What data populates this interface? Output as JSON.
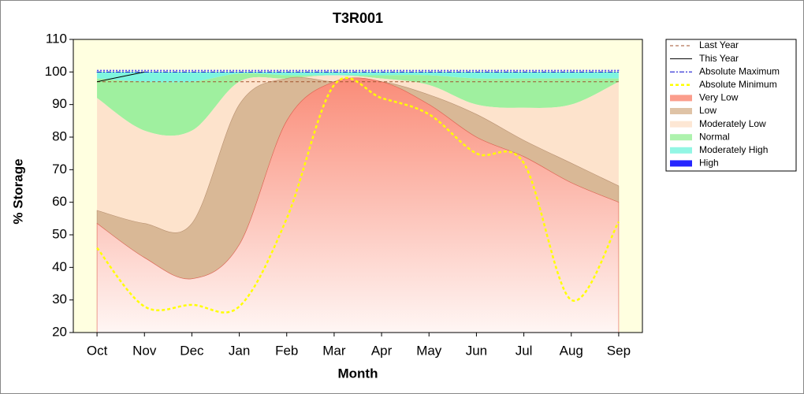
{
  "chart_data": {
    "type": "area",
    "title": "T3R001",
    "x_label": "Month",
    "y_label": "% Storage",
    "categories": [
      "Oct",
      "Nov",
      "Dec",
      "Jan",
      "Feb",
      "Mar",
      "Apr",
      "May",
      "Jun",
      "Jul",
      "Aug",
      "Sep"
    ],
    "ylim": [
      20,
      110
    ],
    "yticks": [
      20,
      30,
      40,
      50,
      60,
      70,
      80,
      90,
      100,
      110
    ],
    "legend": "right",
    "series": [
      {
        "name": "Last Year",
        "color": "#a0522d",
        "line_style": "dashed",
        "values": [
          97,
          97,
          97,
          97,
          97,
          97,
          97,
          97,
          97,
          97,
          97,
          97
        ]
      },
      {
        "name": "This Year",
        "color": "#000000",
        "line_style": "solid",
        "values": [
          97,
          100,
          null,
          null,
          null,
          null,
          null,
          null,
          null,
          null,
          null,
          null
        ]
      },
      {
        "name": "Absolute Maximum",
        "color": "#0000cc",
        "line_style": "dashdot",
        "values": [
          100,
          100,
          100,
          100,
          100,
          100,
          100,
          100,
          100,
          100,
          100,
          100
        ]
      },
      {
        "name": "Absolute Minimum",
        "color": "#ffff00",
        "line_style": "dashed",
        "values": [
          46,
          28,
          28.5,
          28,
          55,
          96,
          92,
          87,
          75,
          72,
          30,
          54
        ]
      },
      {
        "name": "Very Low",
        "color": "#fa8c78",
        "fill": true,
        "values": [
          53.5,
          43,
          36.5,
          47,
          85,
          97,
          97,
          90,
          80,
          74,
          66,
          60
        ]
      },
      {
        "name": "Low",
        "color": "#d9b896",
        "fill": true,
        "values": [
          57.5,
          53.5,
          53.5,
          90,
          98,
          97,
          97,
          93,
          87,
          79,
          72,
          65
        ]
      },
      {
        "name": "Moderately Low",
        "color": "#fde3cc",
        "fill": true,
        "values": [
          92,
          82,
          82,
          97,
          98,
          99,
          98,
          96,
          90,
          89,
          90,
          97
        ]
      },
      {
        "name": "Normal",
        "color": "#9ff09f",
        "fill": true,
        "values": [
          98,
          97,
          97,
          99.5,
          99,
          99,
          99,
          99,
          98,
          98,
          98,
          98
        ]
      },
      {
        "name": "Moderately High",
        "color": "#7ff5df",
        "fill": true,
        "values": [
          100,
          100,
          100,
          100,
          100,
          100,
          100,
          100,
          100,
          100,
          100,
          100
        ]
      },
      {
        "name": "High",
        "color": "#0000ff",
        "fill": true,
        "values": [
          100.5,
          100.5,
          100.5,
          100.5,
          100.5,
          100.5,
          100.5,
          100.5,
          100.5,
          100.5,
          100.5,
          100.5
        ]
      }
    ]
  }
}
